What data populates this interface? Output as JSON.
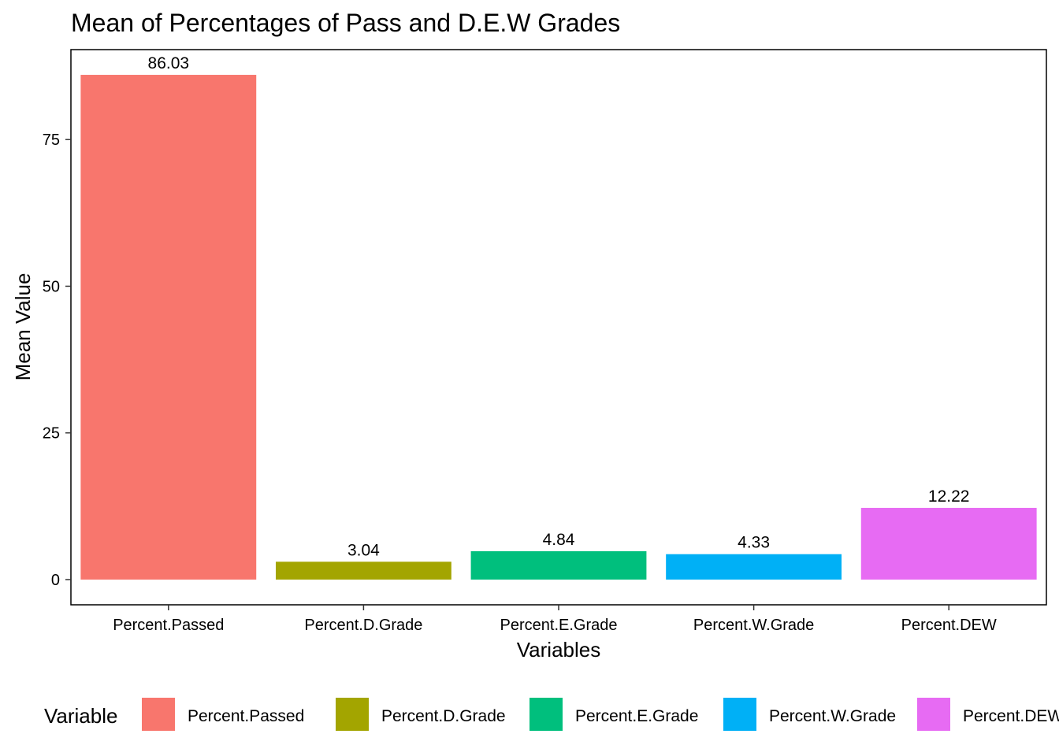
{
  "chart_data": {
    "type": "bar",
    "title": "Mean of Percentages of Pass and D.E.W Grades",
    "xlabel": "Variables",
    "ylabel": "Mean Value",
    "categories": [
      "Percent.Passed",
      "Percent.D.Grade",
      "Percent.E.Grade",
      "Percent.W.Grade",
      "Percent.DEW"
    ],
    "values": [
      86.03,
      3.04,
      4.84,
      4.33,
      12.22
    ],
    "data_labels": [
      "86.03",
      "3.04",
      "4.84",
      "4.33",
      "12.22"
    ],
    "colors": [
      "#F8766D",
      "#A3A500",
      "#00BF7D",
      "#00B0F6",
      "#E76BF3"
    ],
    "yticks": [
      0,
      25,
      50,
      75
    ],
    "ytick_labels": [
      "0",
      "25",
      "50",
      "75"
    ],
    "ylim": [
      -4.3,
      90.33
    ],
    "grid": false,
    "legend": {
      "title": "Variable",
      "placement": "bottom",
      "entries": [
        "Percent.Passed",
        "Percent.D.Grade",
        "Percent.E.Grade",
        "Percent.W.Grade",
        "Percent.DEW"
      ]
    }
  }
}
